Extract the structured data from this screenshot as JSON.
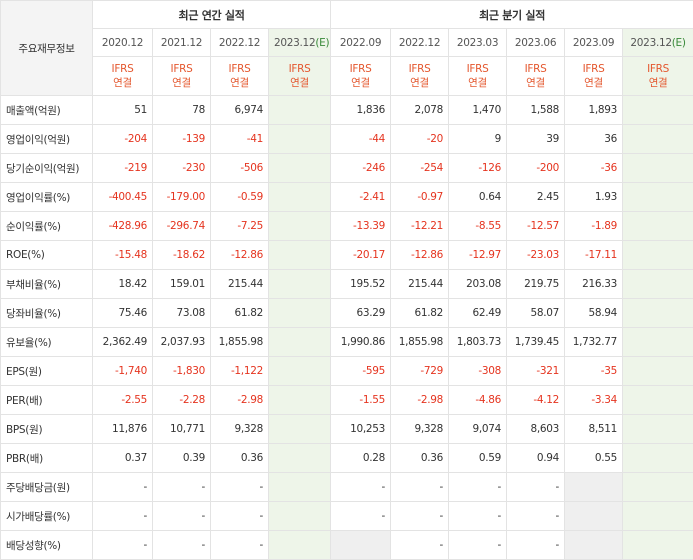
{
  "header": {
    "corner_label": "주요재무정보",
    "annual_title": "최근 연간 실적",
    "quarterly_title": "최근 분기 실적",
    "annual_periods": [
      "2020.12",
      "2021.12",
      "2022.12",
      "2023.12"
    ],
    "annual_est_flag": "(E)",
    "quarterly_periods": [
      "2022.09",
      "2022.12",
      "2023.03",
      "2023.06",
      "2023.09",
      "2023.12"
    ],
    "quarterly_est_flag": "(E)",
    "ifrs_line1": "IFRS",
    "ifrs_line2": "연결"
  },
  "rows": [
    {
      "label": "매출액(억원)",
      "annual": [
        "51",
        "78",
        "6,974",
        ""
      ],
      "quarterly": [
        "1,836",
        "2,078",
        "1,470",
        "1,588",
        "1,893",
        ""
      ]
    },
    {
      "label": "영업이익(억원)",
      "annual": [
        "-204",
        "-139",
        "-41",
        ""
      ],
      "quarterly": [
        "-44",
        "-20",
        "9",
        "39",
        "36",
        ""
      ]
    },
    {
      "label": "당기순이익(억원)",
      "annual": [
        "-219",
        "-230",
        "-506",
        ""
      ],
      "quarterly": [
        "-246",
        "-254",
        "-126",
        "-200",
        "-36",
        ""
      ]
    },
    {
      "label": "영업이익률(%)",
      "annual": [
        "-400.45",
        "-179.00",
        "-0.59",
        ""
      ],
      "quarterly": [
        "-2.41",
        "-0.97",
        "0.64",
        "2.45",
        "1.93",
        ""
      ]
    },
    {
      "label": "순이익률(%)",
      "annual": [
        "-428.96",
        "-296.74",
        "-7.25",
        ""
      ],
      "quarterly": [
        "-13.39",
        "-12.21",
        "-8.55",
        "-12.57",
        "-1.89",
        ""
      ]
    },
    {
      "label": "ROE(%)",
      "annual": [
        "-15.48",
        "-18.62",
        "-12.86",
        ""
      ],
      "quarterly": [
        "-20.17",
        "-12.86",
        "-12.97",
        "-23.03",
        "-17.11",
        ""
      ]
    },
    {
      "label": "부채비율(%)",
      "annual": [
        "18.42",
        "159.01",
        "215.44",
        ""
      ],
      "quarterly": [
        "195.52",
        "215.44",
        "203.08",
        "219.75",
        "216.33",
        ""
      ]
    },
    {
      "label": "당좌비율(%)",
      "annual": [
        "75.46",
        "73.08",
        "61.82",
        ""
      ],
      "quarterly": [
        "63.29",
        "61.82",
        "62.49",
        "58.07",
        "58.94",
        ""
      ]
    },
    {
      "label": "유보율(%)",
      "annual": [
        "2,362.49",
        "2,037.93",
        "1,855.98",
        ""
      ],
      "quarterly": [
        "1,990.86",
        "1,855.98",
        "1,803.73",
        "1,739.45",
        "1,732.77",
        ""
      ]
    },
    {
      "label": "EPS(원)",
      "annual": [
        "-1,740",
        "-1,830",
        "-1,122",
        ""
      ],
      "quarterly": [
        "-595",
        "-729",
        "-308",
        "-321",
        "-35",
        ""
      ]
    },
    {
      "label": "PER(배)",
      "annual": [
        "-2.55",
        "-2.28",
        "-2.98",
        ""
      ],
      "quarterly": [
        "-1.55",
        "-2.98",
        "-4.86",
        "-4.12",
        "-3.34",
        ""
      ]
    },
    {
      "label": "BPS(원)",
      "annual": [
        "11,876",
        "10,771",
        "9,328",
        ""
      ],
      "quarterly": [
        "10,253",
        "9,328",
        "9,074",
        "8,603",
        "8,511",
        ""
      ]
    },
    {
      "label": "PBR(배)",
      "annual": [
        "0.37",
        "0.39",
        "0.36",
        ""
      ],
      "quarterly": [
        "0.28",
        "0.36",
        "0.59",
        "0.94",
        "0.55",
        ""
      ]
    },
    {
      "label": "주당배당금(원)",
      "annual": [
        "-",
        "-",
        "-",
        ""
      ],
      "quarterly": [
        "-",
        "-",
        "-",
        "-",
        "",
        ""
      ]
    },
    {
      "label": "시가배당률(%)",
      "annual": [
        "-",
        "-",
        "-",
        ""
      ],
      "quarterly": [
        "-",
        "-",
        "-",
        "-",
        "",
        ""
      ]
    },
    {
      "label": "배당성향(%)",
      "annual": [
        "-",
        "-",
        "-",
        ""
      ],
      "quarterly": [
        "",
        "-",
        "-",
        "-",
        "",
        ""
      ]
    }
  ]
}
